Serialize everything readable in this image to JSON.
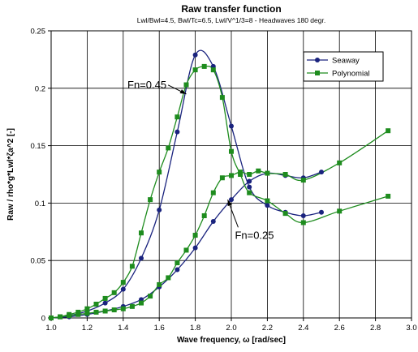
{
  "chart_data": {
    "type": "line",
    "title": "Raw transfer function",
    "subtitle": "Lwl/Bwl=4.5, Bwl/Tc=6.5, Lwl/V^1/3=8 - Headwaves 180 degr.",
    "xlabel": "Wave frequency, ω [rad/sec]",
    "ylabel": "Raw / rho*g*Lwl*ζa^2 [-]",
    "xlim": [
      1.0,
      3.0
    ],
    "ylim": [
      0,
      0.25
    ],
    "x_ticks": [
      "1.0",
      "1.2",
      "1.4",
      "1.6",
      "1.8",
      "2.0",
      "2.2",
      "2.4",
      "2.6",
      "2.8",
      "3.0"
    ],
    "y_ticks": [
      "0",
      "0.05",
      "0.1",
      "0.15",
      "0.2",
      "0.25"
    ],
    "grid": true,
    "legend_position": "top-right",
    "colors": {
      "Seaway": "#1a237e",
      "Polynomial": "#1e8c1e"
    },
    "series": [
      {
        "name": "Seaway",
        "marker": "circle",
        "x": [
          1.0,
          1.1,
          1.2,
          1.3,
          1.4,
          1.5,
          1.6,
          1.7,
          1.8,
          1.9,
          2.0,
          2.1,
          2.2,
          2.3,
          2.4,
          2.5
        ],
        "y": [
          0.0,
          0.002,
          0.006,
          0.013,
          0.025,
          0.052,
          0.094,
          0.162,
          0.229,
          0.219,
          0.167,
          0.114,
          0.098,
          0.092,
          0.089,
          0.092
        ]
      },
      {
        "name": "Seaway",
        "marker": "circle",
        "x": [
          1.0,
          1.1,
          1.2,
          1.3,
          1.4,
          1.5,
          1.6,
          1.7,
          1.8,
          1.9,
          2.0,
          2.1,
          2.2,
          2.3,
          2.4,
          2.5
        ],
        "y": [
          0.0,
          0.001,
          0.003,
          0.006,
          0.01,
          0.016,
          0.027,
          0.042,
          0.061,
          0.084,
          0.103,
          0.119,
          0.126,
          0.124,
          0.122,
          0.127
        ]
      },
      {
        "name": "Polynomial",
        "marker": "square",
        "x": [
          1.0,
          1.05,
          1.1,
          1.15,
          1.2,
          1.25,
          1.3,
          1.35,
          1.4,
          1.45,
          1.5,
          1.55,
          1.6,
          1.65,
          1.7,
          1.75,
          1.8,
          1.85,
          1.9,
          1.95,
          2.0,
          2.05,
          2.1,
          2.2,
          2.3,
          2.4,
          2.6,
          2.87
        ],
        "y": [
          0.0,
          0.001,
          0.003,
          0.005,
          0.008,
          0.012,
          0.017,
          0.022,
          0.031,
          0.045,
          0.074,
          0.103,
          0.127,
          0.148,
          0.175,
          0.203,
          0.216,
          0.219,
          0.216,
          0.192,
          0.145,
          0.125,
          0.109,
          0.102,
          0.091,
          0.083,
          0.093,
          0.106
        ]
      },
      {
        "name": "Polynomial",
        "marker": "square",
        "x": [
          1.0,
          1.05,
          1.1,
          1.15,
          1.2,
          1.25,
          1.3,
          1.35,
          1.4,
          1.45,
          1.5,
          1.55,
          1.6,
          1.65,
          1.7,
          1.75,
          1.8,
          1.85,
          1.9,
          1.95,
          2.0,
          2.05,
          2.1,
          2.15,
          2.2,
          2.3,
          2.4,
          2.6,
          2.87
        ],
        "y": [
          0.0,
          0.001,
          0.002,
          0.003,
          0.004,
          0.005,
          0.006,
          0.007,
          0.008,
          0.01,
          0.013,
          0.019,
          0.029,
          0.035,
          0.048,
          0.059,
          0.072,
          0.089,
          0.109,
          0.122,
          0.124,
          0.127,
          0.125,
          0.128,
          0.126,
          0.125,
          0.12,
          0.135,
          0.163
        ]
      }
    ],
    "annotations": [
      {
        "text": "Fn=0.45",
        "x": 1.64,
        "y": 0.2,
        "arrow_to": [
          1.75,
          0.195
        ]
      },
      {
        "text": "Fn=0.25",
        "x": 2.02,
        "y": 0.069,
        "arrow_to": [
          1.98,
          0.103
        ]
      }
    ]
  }
}
